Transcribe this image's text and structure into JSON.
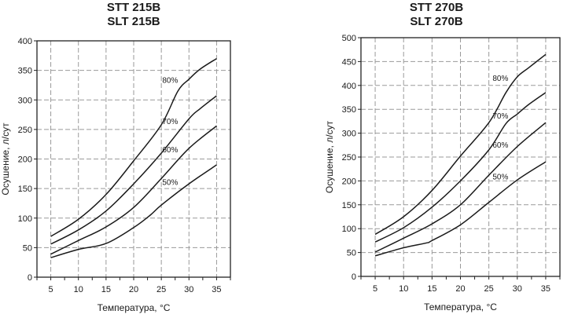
{
  "chart_data": [
    {
      "type": "line",
      "title": [
        "STT 215B",
        "SLT 215B"
      ],
      "xlabel": "Температура, °C",
      "ylabel": "Осушение, л/сут",
      "xlim": [
        2.5,
        37.5
      ],
      "ylim": [
        0,
        400
      ],
      "xticks": [
        5,
        10,
        15,
        20,
        25,
        30,
        35
      ],
      "yticks": [
        0,
        50,
        100,
        150,
        200,
        250,
        300,
        350,
        400
      ],
      "grid": true,
      "series": [
        {
          "name": "80%",
          "x": [
            5,
            10,
            15,
            20,
            25,
            28,
            30,
            32,
            35
          ],
          "values": [
            69,
            98,
            140,
            197,
            258,
            315,
            335,
            352,
            370
          ]
        },
        {
          "name": "70%",
          "x": [
            5,
            10,
            15,
            20,
            25,
            30,
            32,
            35
          ],
          "values": [
            56,
            80,
            112,
            158,
            210,
            268,
            285,
            307
          ]
        },
        {
          "name": "60%",
          "x": [
            5,
            10,
            15,
            20,
            25,
            30,
            35
          ],
          "values": [
            39,
            62,
            85,
            118,
            167,
            218,
            256
          ]
        },
        {
          "name": "50%",
          "x": [
            5,
            10,
            15,
            20,
            23,
            25,
            30,
            35
          ],
          "values": [
            33,
            47,
            57,
            84,
            105,
            122,
            158,
            190
          ]
        }
      ]
    },
    {
      "type": "line",
      "title": [
        "STT 270B",
        "SLT 270B"
      ],
      "xlabel": "Температура, °C",
      "ylabel": "Осушение, л/сут",
      "xlim": [
        2.5,
        37.5
      ],
      "ylim": [
        0,
        500
      ],
      "xticks": [
        5,
        10,
        15,
        20,
        25,
        30,
        35
      ],
      "yticks": [
        0,
        50,
        100,
        150,
        200,
        250,
        300,
        350,
        400,
        450,
        500
      ],
      "grid": true,
      "series": [
        {
          "name": "80%",
          "x": [
            5,
            10,
            15,
            20,
            25,
            28,
            30,
            32,
            35
          ],
          "values": [
            88,
            125,
            180,
            252,
            322,
            385,
            418,
            437,
            465
          ]
        },
        {
          "name": "70%",
          "x": [
            5,
            10,
            15,
            20,
            25,
            28,
            30,
            32,
            35
          ],
          "values": [
            72,
            102,
            145,
            200,
            265,
            320,
            340,
            360,
            385
          ]
        },
        {
          "name": "60%",
          "x": [
            5,
            10,
            15,
            20,
            25,
            30,
            35
          ],
          "values": [
            51,
            80,
            110,
            150,
            212,
            272,
            322
          ]
        },
        {
          "name": "50%",
          "x": [
            5,
            10,
            14,
            15,
            20,
            25,
            30,
            35
          ],
          "values": [
            43,
            60,
            70,
            75,
            108,
            155,
            202,
            240
          ]
        }
      ]
    }
  ]
}
